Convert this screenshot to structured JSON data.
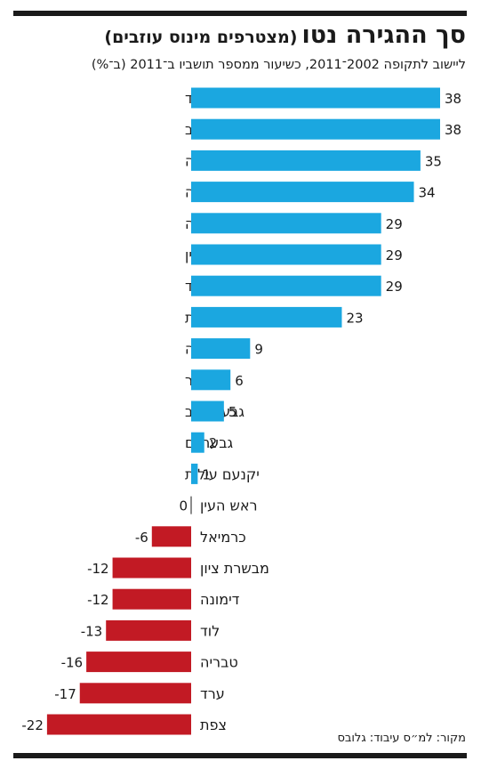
{
  "header": {
    "title": "סך ההגירה נטו",
    "title_note": "(מצטרפים מינוס עוזבים)",
    "subtitle": "ליישוב לתקופה 2002־2011, כשיעור ממספר תושביו ב־2011 (ב־%)"
  },
  "footer": {
    "source": "מקור: למ״ס עיבוד: גלובס"
  },
  "colors": {
    "positive": "#1ba7e0",
    "negative": "#c21a24",
    "text": "#1a1a1a"
  },
  "chart_data": {
    "type": "bar",
    "orientation": "horizontal",
    "title": "סך ההגירה נטו",
    "categories": [
      "אלעד",
      "באר יעקב",
      "גן יבנה",
      "גדרה",
      "מזכרת בתיה",
      "מודיעין",
      "תל מונד",
      "מודיעין עילית",
      "גני תקווה",
      "אזור",
      "גבעת זאב",
      "גבעתיים",
      "יקנעם עילית",
      "ראש העין",
      "כרמיאל",
      "מבשרת ציון",
      "דימונה",
      "לוד",
      "טבריה",
      "ערד",
      "צפת"
    ],
    "values": [
      38,
      38,
      35,
      34,
      29,
      29,
      29,
      23,
      9,
      6,
      5,
      2,
      1,
      0,
      -6,
      -12,
      -12,
      -13,
      -16,
      -17,
      -22
    ],
    "value_labels": [
      "38",
      "38",
      "35",
      "34",
      "29",
      "29",
      "29",
      "23",
      "9",
      "6",
      "5",
      "2",
      "1",
      "0",
      "-6",
      "-12",
      "-12",
      "-13",
      "-16",
      "-17",
      "-22"
    ],
    "xlim": [
      -22,
      38
    ],
    "grid": false,
    "legend": "none"
  }
}
